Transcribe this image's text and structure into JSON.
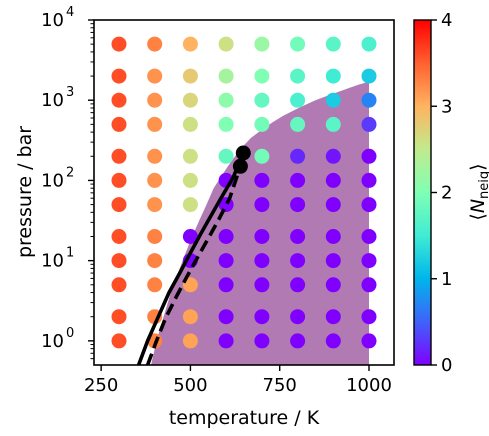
{
  "chart_data": {
    "type": "scatter",
    "xlabel": "temperature / K",
    "ylabel": "pressure / bar",
    "xlim": [
      230,
      1070
    ],
    "ylim": [
      0.5,
      10000
    ],
    "yscale": "log",
    "x_ticks": [
      {
        "value": 250,
        "label": "250"
      },
      {
        "value": 500,
        "label": "500"
      },
      {
        "value": 750,
        "label": "750"
      },
      {
        "value": 1000,
        "label": "1000"
      }
    ],
    "y_ticks": [
      {
        "value": 1,
        "base": "10",
        "exp": "0"
      },
      {
        "value": 10,
        "base": "10",
        "exp": "1"
      },
      {
        "value": 100,
        "base": "10",
        "exp": "2"
      },
      {
        "value": 1000,
        "base": "10",
        "exp": "3"
      },
      {
        "value": 10000,
        "base": "10",
        "exp": "4"
      }
    ],
    "grid": false,
    "colorbar": {
      "label_prefix": "⟨",
      "label_main": "N",
      "label_sub": "neiq",
      "label_suffix": "⟩",
      "range": [
        0,
        4
      ],
      "ticks": [
        "0",
        "1",
        "2",
        "3",
        "4"
      ],
      "colormap": "rainbow"
    },
    "temperatures": [
      300,
      400,
      500,
      600,
      700,
      800,
      900,
      1000
    ],
    "pressures": [
      1,
      2,
      5,
      10,
      20,
      50,
      100,
      200,
      500,
      1000,
      2000,
      5000
    ],
    "values": [
      [
        3.6,
        3.3,
        3.1,
        0.0,
        0.0,
        0.0,
        0.0,
        0.0
      ],
      [
        3.6,
        3.3,
        3.1,
        0.0,
        0.0,
        0.0,
        0.0,
        0.0
      ],
      [
        3.6,
        3.3,
        3.1,
        0.0,
        0.0,
        0.0,
        0.0,
        0.0
      ],
      [
        3.6,
        3.3,
        0.0,
        0.0,
        0.0,
        0.0,
        0.0,
        0.0
      ],
      [
        3.6,
        3.3,
        0.0,
        0.0,
        0.0,
        0.0,
        0.0,
        0.0
      ],
      [
        3.6,
        3.2,
        2.6,
        0.0,
        0.0,
        0.0,
        0.0,
        0.0
      ],
      [
        3.6,
        3.2,
        2.6,
        0.0,
        0.0,
        0.0,
        0.0,
        0.0
      ],
      [
        3.6,
        3.2,
        2.6,
        1.8,
        1.9,
        0.2,
        0.1,
        0.0
      ],
      [
        3.6,
        3.2,
        2.6,
        2.0,
        1.9,
        1.8,
        1.7,
        0.3
      ],
      [
        3.6,
        3.2,
        2.7,
        2.1,
        1.8,
        1.6,
        1.2,
        0.7
      ],
      [
        3.6,
        3.2,
        2.8,
        2.3,
        2.0,
        1.7,
        1.5,
        1.2
      ],
      [
        3.6,
        3.3,
        3.0,
        2.6,
        2.2,
        1.9,
        1.7,
        1.6
      ]
    ],
    "critical_points": [
      {
        "x": 648,
        "y": 220
      },
      {
        "x": 640,
        "y": 150
      }
    ],
    "solid_curve": {
      "x": [
        355,
        380,
        410,
        440,
        470,
        500,
        530,
        560,
        590,
        620,
        648
      ],
      "y": [
        0.5,
        1,
        2,
        4,
        7,
        12.5,
        22,
        38,
        65,
        110,
        220
      ]
    },
    "dashed_curve": {
      "x": [
        380,
        405,
        430,
        460,
        490,
        520,
        550,
        580,
        610,
        640
      ],
      "y": [
        0.5,
        1,
        1.9,
        3.5,
        6.3,
        11,
        19,
        33,
        60,
        150
      ]
    },
    "shaded_region_boundary": {
      "x": [
        390,
        405,
        425,
        445,
        465,
        485,
        505,
        525,
        545,
        565,
        585,
        605,
        625,
        645,
        670,
        700,
        730,
        760,
        790,
        820,
        850,
        880,
        910,
        940,
        970,
        1000
      ],
      "y": [
        0.5,
        1,
        2,
        4,
        7,
        12,
        20,
        32,
        50,
        80,
        110,
        150,
        200,
        260,
        340,
        430,
        530,
        640,
        750,
        870,
        1000,
        1120,
        1250,
        1400,
        1560,
        1700
      ]
    },
    "shaded_color": "#a363a6"
  }
}
